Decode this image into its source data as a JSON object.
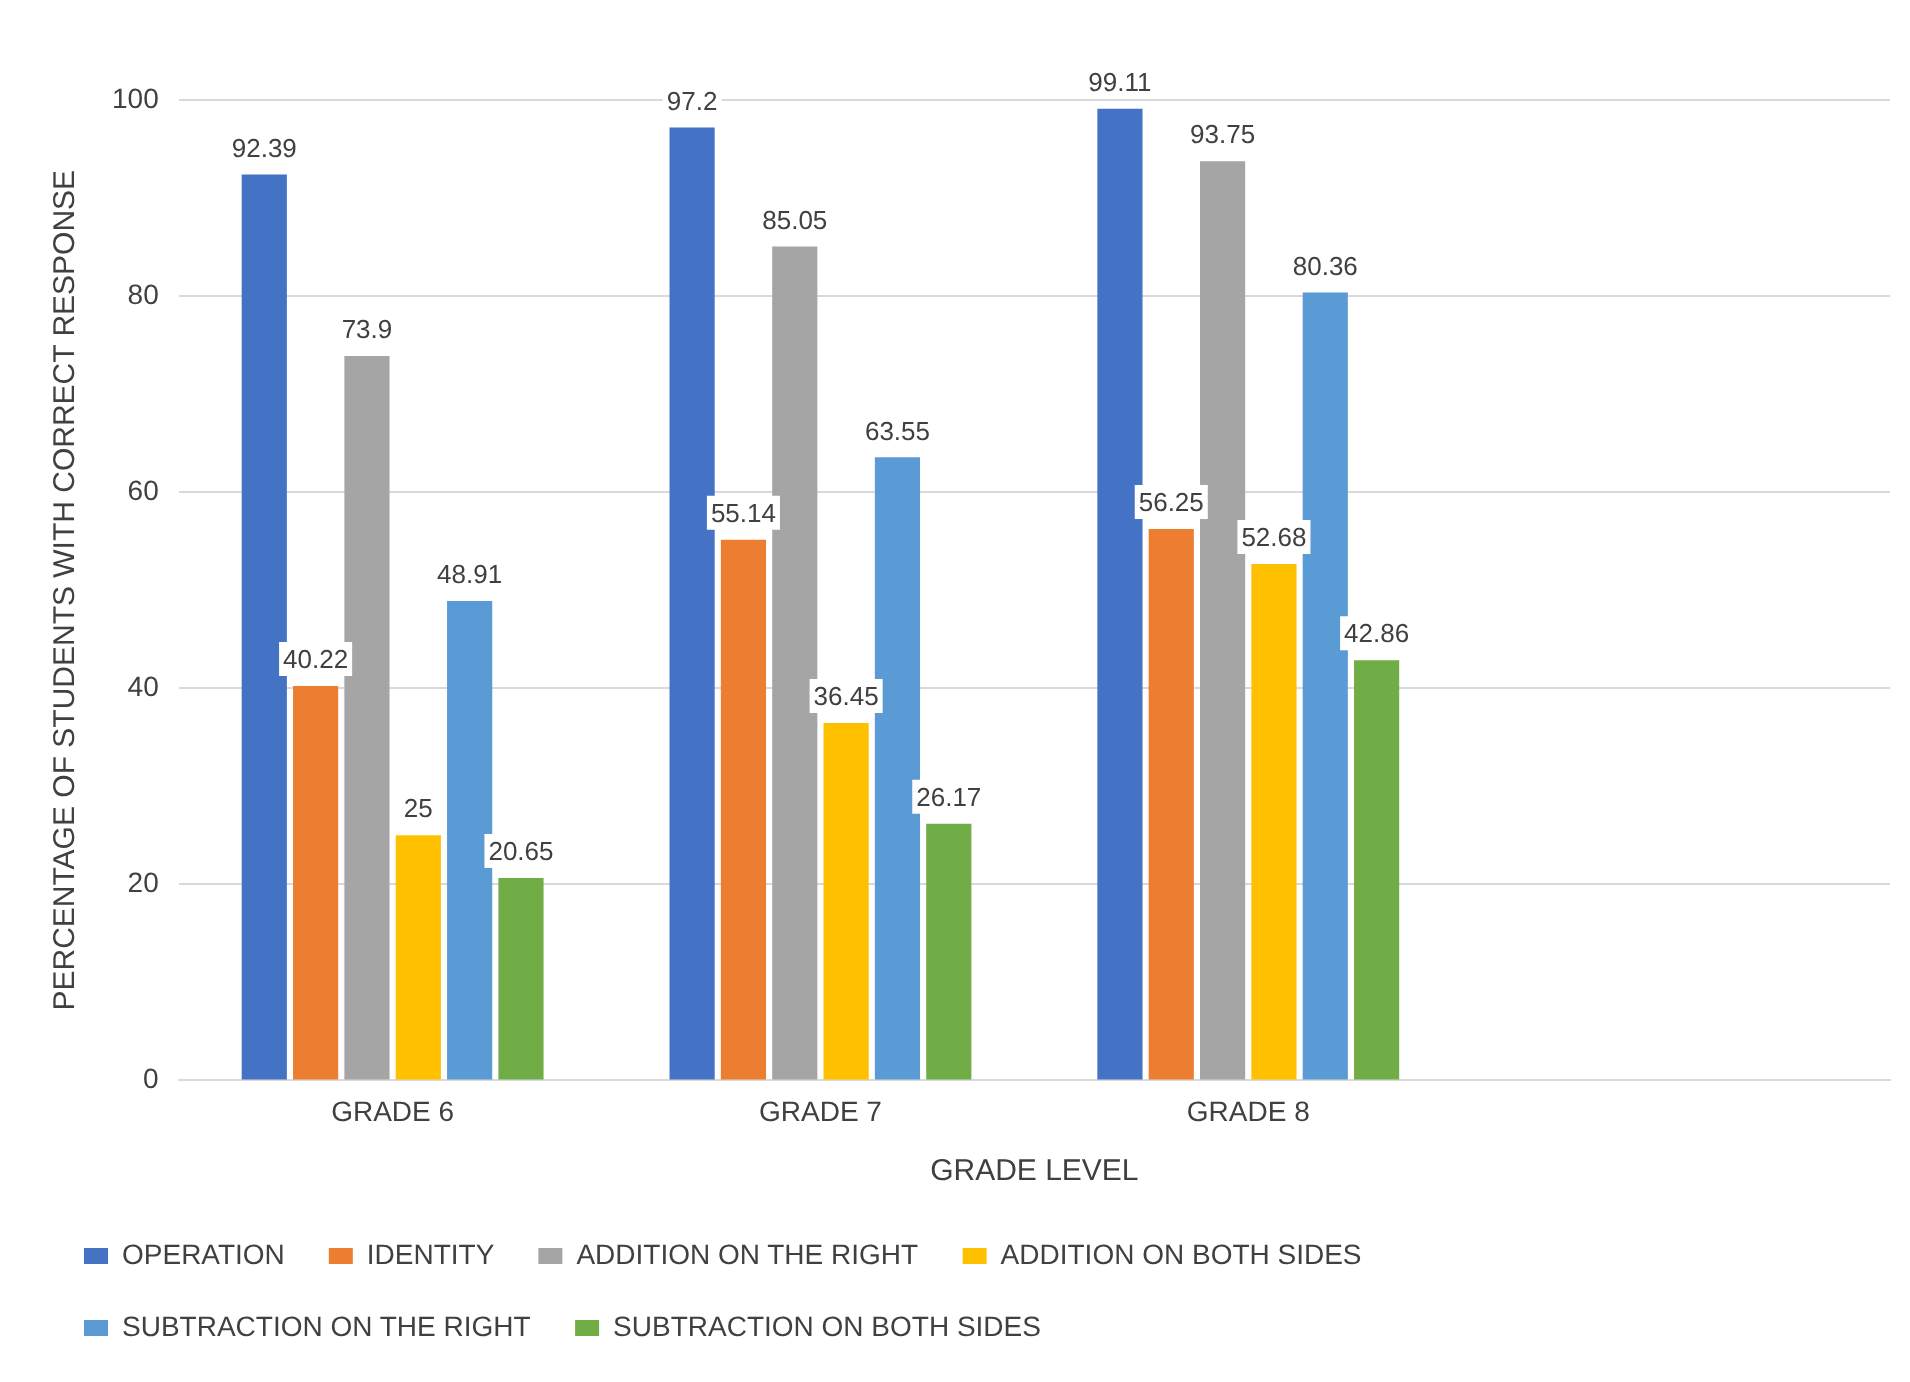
{
  "chart_data": {
    "type": "bar",
    "xlabel": "GRADE LEVEL",
    "ylabel": "PERCENTAGE OF STUDENTS WITH CORRECT RESPONSE",
    "categories": [
      "GRADE 6",
      "GRADE 7",
      "GRADE 8",
      null
    ],
    "series": [
      {
        "name": "OPERATION",
        "color": "#4472c4",
        "values": [
          92.39,
          97.2,
          99.11,
          null
        ]
      },
      {
        "name": "IDENTITY",
        "color": "#ed7d31",
        "values": [
          40.22,
          55.14,
          56.25,
          null
        ]
      },
      {
        "name": "ADDITION ON THE RIGHT",
        "color": "#a5a5a5",
        "values": [
          73.9,
          85.05,
          93.75,
          null
        ]
      },
      {
        "name": "ADDITION ON BOTH SIDES",
        "color": "#ffc000",
        "values": [
          25,
          36.45,
          52.68,
          null
        ]
      },
      {
        "name": "SUBTRACTION ON THE RIGHT",
        "color": "#5b9bd5",
        "values": [
          48.91,
          63.55,
          80.36,
          null
        ]
      },
      {
        "name": "SUBTRACTION ON BOTH SIDES",
        "color": "#70ad47",
        "values": [
          20.65,
          26.17,
          42.86,
          null
        ]
      }
    ],
    "ylim": [
      0,
      100
    ],
    "yticks": [
      0,
      20,
      40,
      60,
      80,
      100
    ],
    "grid": "y",
    "legend": "bottom",
    "data_labels": true
  }
}
